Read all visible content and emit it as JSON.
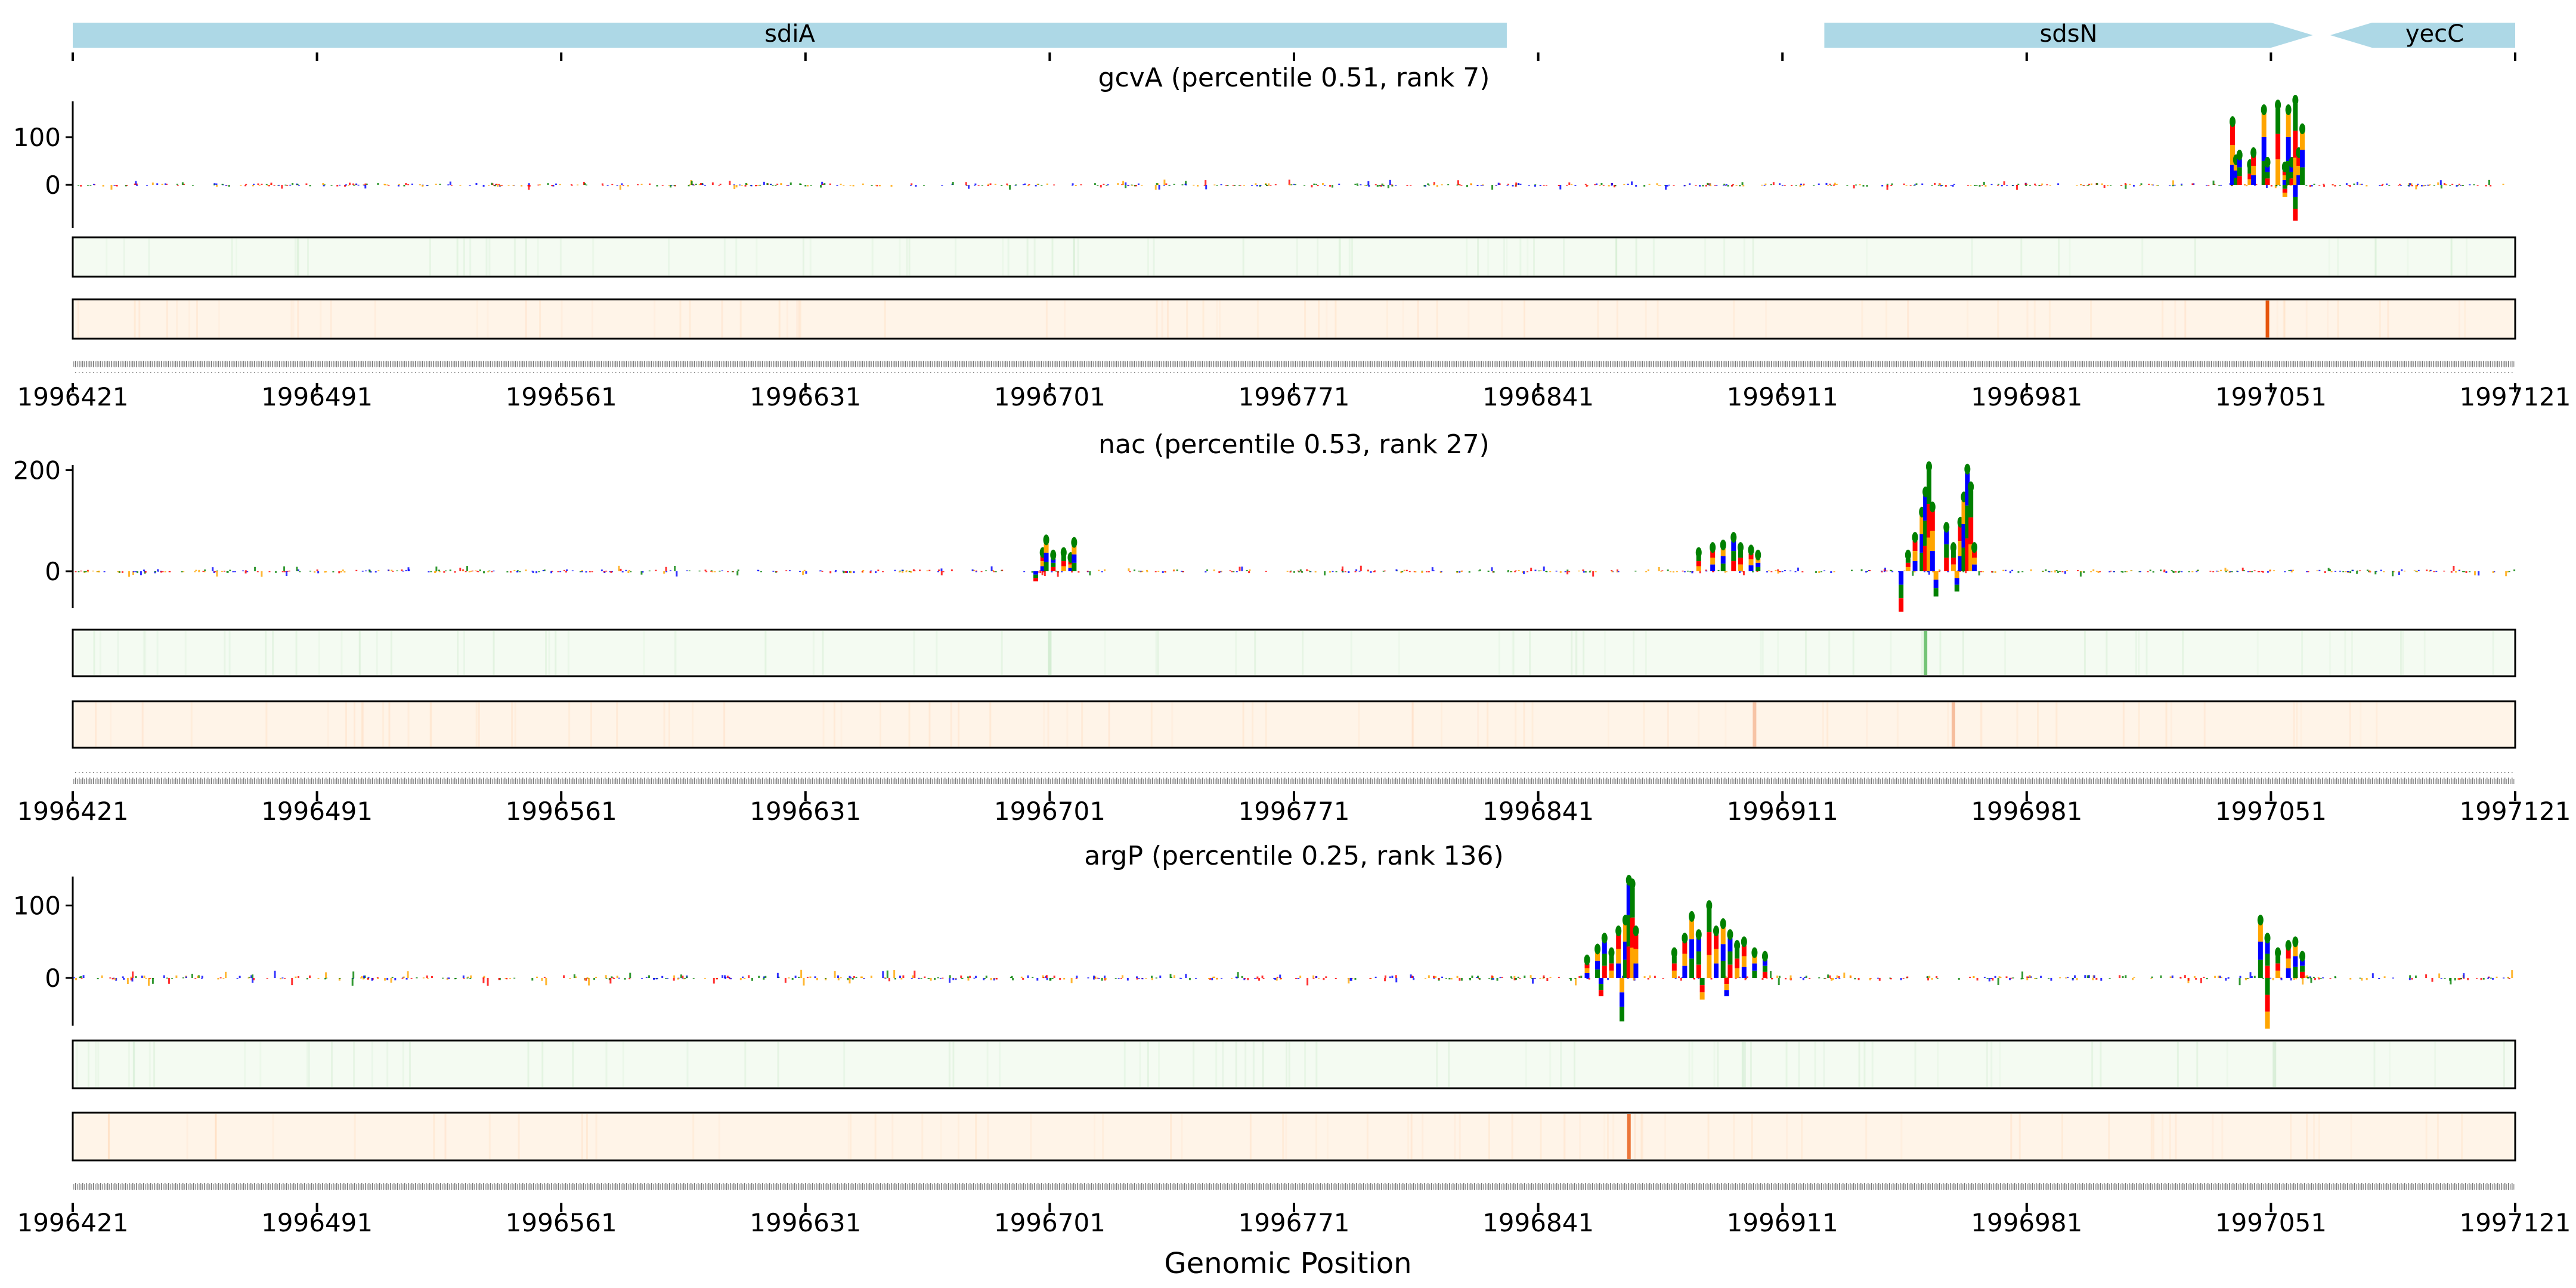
{
  "chart_data": {
    "type": "genome-track",
    "xlabel": "Genomic Position",
    "xlim": [
      1996421,
      1997121
    ],
    "xticks": [
      1996421,
      1996491,
      1996561,
      1996631,
      1996701,
      1996771,
      1996841,
      1996911,
      1996981,
      1997051,
      1997121
    ],
    "genes": [
      {
        "name": "sdiA",
        "start": 1996421,
        "end": 1996832,
        "strand": "none"
      },
      {
        "name": "sdsN",
        "start": 1996923,
        "end": 1997063,
        "strand": "+"
      },
      {
        "name": "yecC",
        "start": 1997068,
        "end": 1997121,
        "strand": "-"
      }
    ],
    "colors": {
      "gene": "#add8e6",
      "A": "#008000",
      "C": "#0000ff",
      "G": "#ffa500",
      "T": "#ff0000",
      "track1_bg": "#f4fbf2",
      "track1_peak": "#74c476",
      "track2_bg": "#fff4e8",
      "track2_peak": "#e6550d"
    },
    "panels": [
      {
        "title": "gcvA (percentile 0.51, rank 7)",
        "ylim": [
          -50,
          175
        ],
        "yticks": [
          0,
          100
        ],
        "peaks": [
          {
            "x": 1997040,
            "y": 125
          },
          {
            "x": 1997041,
            "y": 45
          },
          {
            "x": 1997042,
            "y": 55
          },
          {
            "x": 1997045,
            "y": 35
          },
          {
            "x": 1997046,
            "y": 60
          },
          {
            "x": 1997049,
            "y": 150
          },
          {
            "x": 1997050,
            "y": 40
          },
          {
            "x": 1997053,
            "y": 160
          },
          {
            "x": 1997055,
            "y": 30
          },
          {
            "x": 1997056,
            "y": 150
          },
          {
            "x": 1997057,
            "y": 40
          },
          {
            "x": 1997058,
            "y": 170
          },
          {
            "x": 1997059,
            "y": 60
          },
          {
            "x": 1997060,
            "y": 110
          },
          {
            "x": 1997058,
            "y": -75
          },
          {
            "x": 1997055,
            "y": -25
          }
        ],
        "track1_peaks": [],
        "track2_peaks": [
          {
            "x": 1997050,
            "strength": 1.0
          }
        ]
      },
      {
        "title": "nac (percentile 0.53, rank 27)",
        "ylim": [
          -100,
          210
        ],
        "yticks": [
          0,
          200
        ],
        "peaks": [
          {
            "x": 1996699,
            "y": 30
          },
          {
            "x": 1996700,
            "y": 55
          },
          {
            "x": 1996702,
            "y": 25
          },
          {
            "x": 1996705,
            "y": 30
          },
          {
            "x": 1996707,
            "y": 20
          },
          {
            "x": 1996708,
            "y": 50
          },
          {
            "x": 1996697,
            "y": -20
          },
          {
            "x": 1996887,
            "y": 30
          },
          {
            "x": 1996891,
            "y": 40
          },
          {
            "x": 1996894,
            "y": 45
          },
          {
            "x": 1996897,
            "y": 60
          },
          {
            "x": 1996899,
            "y": 40
          },
          {
            "x": 1996902,
            "y": 35
          },
          {
            "x": 1996904,
            "y": 25
          },
          {
            "x": 1996945,
            "y": -80
          },
          {
            "x": 1996947,
            "y": 25
          },
          {
            "x": 1996949,
            "y": 60
          },
          {
            "x": 1996951,
            "y": 110
          },
          {
            "x": 1996952,
            "y": 150
          },
          {
            "x": 1996953,
            "y": 200
          },
          {
            "x": 1996954,
            "y": 120
          },
          {
            "x": 1996955,
            "y": -50
          },
          {
            "x": 1996958,
            "y": 80
          },
          {
            "x": 1996960,
            "y": 40
          },
          {
            "x": 1996962,
            "y": 90
          },
          {
            "x": 1996963,
            "y": 140
          },
          {
            "x": 1996964,
            "y": 195
          },
          {
            "x": 1996965,
            "y": 160
          },
          {
            "x": 1996966,
            "y": 40
          },
          {
            "x": 1996961,
            "y": -40
          }
        ],
        "track1_peaks": [
          {
            "x": 1996952,
            "strength": 1.0
          },
          {
            "x": 1996701,
            "strength": 0.25
          }
        ],
        "track2_peaks": [
          {
            "x": 1996903,
            "strength": 0.3
          },
          {
            "x": 1996960,
            "strength": 0.35
          }
        ]
      },
      {
        "title": "argP (percentile 0.25, rank 136)",
        "ylim": [
          -80,
          140
        ],
        "yticks": [
          0,
          100
        ],
        "peaks": [
          {
            "x": 1996855,
            "y": 20
          },
          {
            "x": 1996858,
            "y": 35
          },
          {
            "x": 1996860,
            "y": 50
          },
          {
            "x": 1996862,
            "y": 30
          },
          {
            "x": 1996864,
            "y": 60
          },
          {
            "x": 1996866,
            "y": 75
          },
          {
            "x": 1996867,
            "y": 130
          },
          {
            "x": 1996868,
            "y": 125
          },
          {
            "x": 1996869,
            "y": 60
          },
          {
            "x": 1996865,
            "y": -60
          },
          {
            "x": 1996859,
            "y": -25
          },
          {
            "x": 1996880,
            "y": 30
          },
          {
            "x": 1996883,
            "y": 50
          },
          {
            "x": 1996885,
            "y": 80
          },
          {
            "x": 1996887,
            "y": 55
          },
          {
            "x": 1996890,
            "y": 95
          },
          {
            "x": 1996892,
            "y": 60
          },
          {
            "x": 1996894,
            "y": 70
          },
          {
            "x": 1996896,
            "y": 55
          },
          {
            "x": 1996898,
            "y": 40
          },
          {
            "x": 1996900,
            "y": 45
          },
          {
            "x": 1996903,
            "y": 30
          },
          {
            "x": 1996906,
            "y": 25
          },
          {
            "x": 1996888,
            "y": -30
          },
          {
            "x": 1996895,
            "y": -25
          },
          {
            "x": 1997048,
            "y": 75
          },
          {
            "x": 1997050,
            "y": 50
          },
          {
            "x": 1997053,
            "y": 30
          },
          {
            "x": 1997056,
            "y": 40
          },
          {
            "x": 1997058,
            "y": 45
          },
          {
            "x": 1997060,
            "y": 25
          },
          {
            "x": 1997050,
            "y": -70
          }
        ],
        "track1_peaks": [
          {
            "x": 1996900,
            "strength": 0.15
          },
          {
            "x": 1997052,
            "strength": 0.2
          }
        ],
        "track2_peaks": [
          {
            "x": 1996867,
            "strength": 0.8
          }
        ]
      }
    ]
  }
}
